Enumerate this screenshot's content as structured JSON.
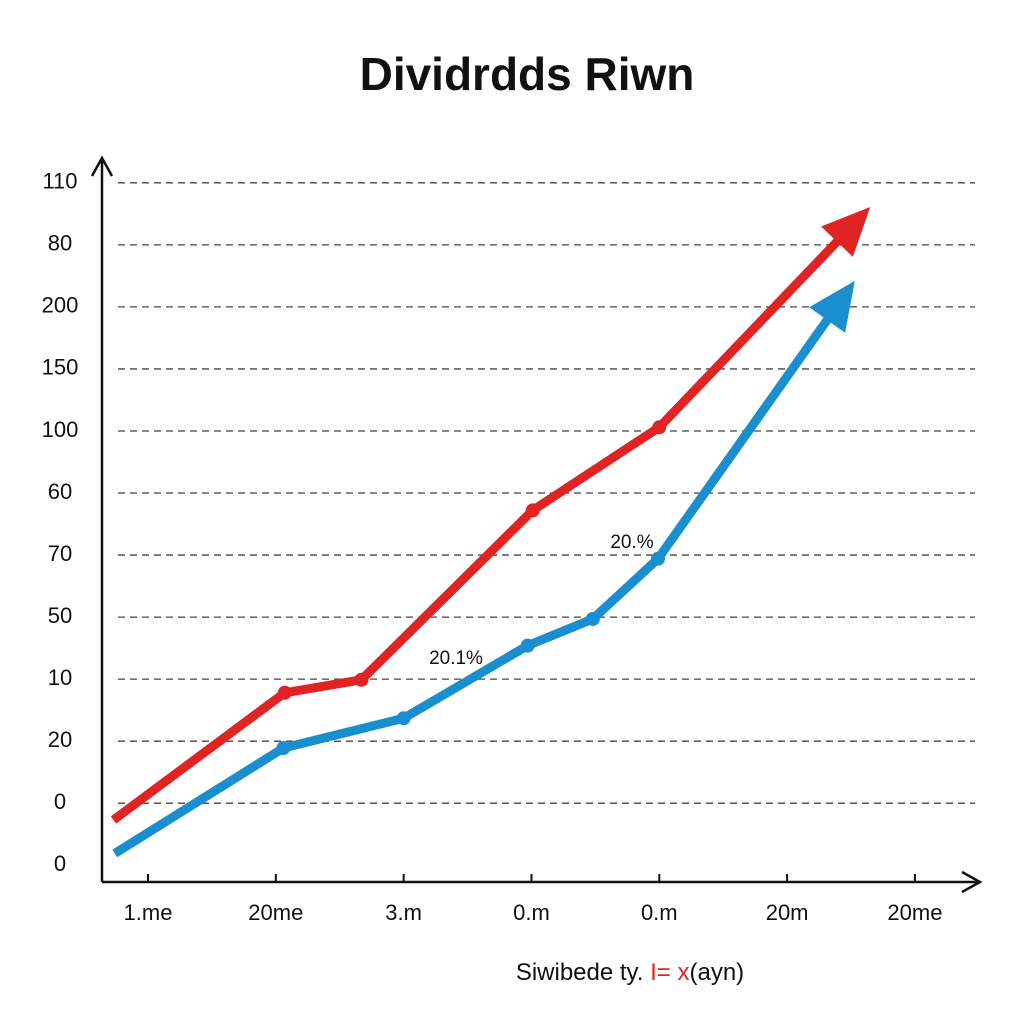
{
  "chart_data": {
    "type": "line",
    "title": "Dividrdds Riwn",
    "xlabel": [
      "Siwibede ty.",
      "I=",
      "x",
      "(ayn)"
    ],
    "xlim": [
      -0.36,
      6.47
    ],
    "xticks": [
      {
        "value": 0,
        "label": "1.me"
      },
      {
        "value": 1,
        "label": "20me"
      },
      {
        "value": 2,
        "label": "3.m"
      },
      {
        "value": 3,
        "label": "0.m"
      },
      {
        "value": 4,
        "label": "0.m"
      },
      {
        "value": 5,
        "label": "20m"
      },
      {
        "value": 6,
        "label": "20me"
      }
    ],
    "ylim": [
      -0.27,
      11.4
    ],
    "yticks": [
      {
        "value": 0,
        "label": "0"
      },
      {
        "value": 1,
        "label": "0"
      },
      {
        "value": 2,
        "label": "20"
      },
      {
        "value": 3,
        "label": "10"
      },
      {
        "value": 4,
        "label": "50"
      },
      {
        "value": 5,
        "label": "70"
      },
      {
        "value": 6,
        "label": "60"
      },
      {
        "value": 7,
        "label": "100"
      },
      {
        "value": 8,
        "label": "150"
      },
      {
        "value": 9,
        "label": "200"
      },
      {
        "value": 10,
        "label": "80"
      },
      {
        "value": 11,
        "label": "110"
      }
    ],
    "grid": true,
    "series": [
      {
        "color": "#e02424",
        "x": [
          -0.27,
          1.07,
          1.67,
          3.01,
          4.0,
          5.65
        ],
        "values": [
          0.73,
          2.78,
          2.99,
          5.72,
          7.06,
          10.61
        ]
      },
      {
        "color": "#1a8fd0",
        "x": [
          -0.26,
          1.06,
          2.0,
          2.97,
          3.48,
          3.99,
          5.53
        ],
        "values": [
          0.19,
          1.89,
          2.37,
          3.54,
          3.97,
          4.94,
          9.42
        ]
      }
    ],
    "annotations": [
      "20.1%",
      "20.%"
    ]
  }
}
